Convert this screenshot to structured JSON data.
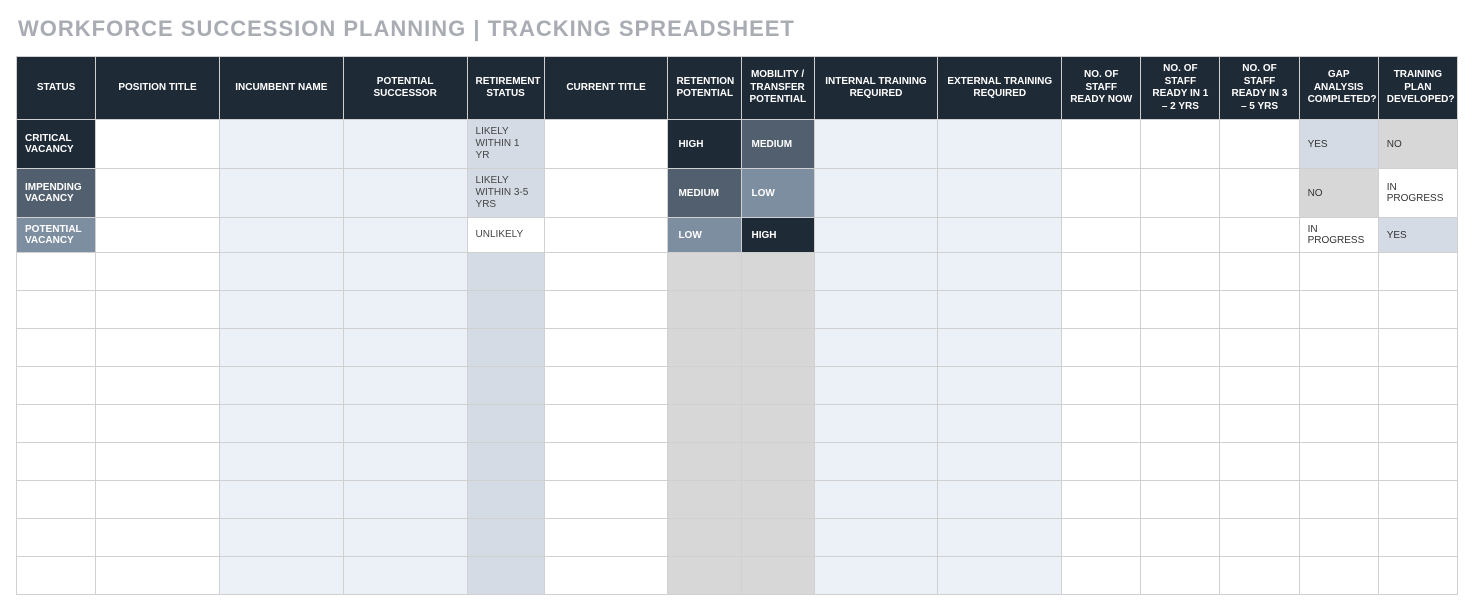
{
  "title": "WORKFORCE SUCCESSION PLANNING | TRACKING SPREADSHEET",
  "colors": {
    "header_bg": "#1f2a37",
    "header_text": "#ffffff",
    "title_text": "#a9adb3",
    "border": "#d0d0d0",
    "alt_lightblue": "#ebf1f7",
    "alt_mutedblue": "#d4dbe4",
    "alt_grey": "#d7d7d7",
    "status_critical": "#1f2a37",
    "status_impending": "#525f6f",
    "status_potential": "#7e8ea1"
  },
  "columns": [
    "STATUS",
    "POSITION TITLE",
    "INCUMBENT NAME",
    "POTENTIAL SUCCESSOR",
    "RETIREMENT STATUS",
    "CURRENT TITLE",
    "RETENTION POTENTIAL",
    "MOBILITY / TRANSFER POTENTIAL",
    "INTERNAL TRAINING REQUIRED",
    "EXTERNAL TRAINING REQUIRED",
    "NO. OF STAFF READY NOW",
    "NO. OF STAFF READY IN 1 – 2 YRS",
    "NO. OF STAFF READY IN 3 – 5 YRS",
    "GAP ANALYSIS COMPLETED?",
    "TRAINING PLAN DEVELOPED?"
  ],
  "rows": [
    {
      "status": {
        "text": "CRITICAL VACANCY",
        "class": "status-critical"
      },
      "position_title": "",
      "incumbent_name": "",
      "potential_successor": "",
      "retirement_status": {
        "text": "LIKELY WITHIN 1 YR",
        "bg": "bg-mutedblue"
      },
      "current_title": "",
      "retention_potential": {
        "text": "HIGH",
        "class": "rp-dark"
      },
      "mobility_potential": {
        "text": "MEDIUM",
        "class": "rp-mid"
      },
      "internal_training": "",
      "external_training": "",
      "staff_now": "",
      "staff_12": "",
      "staff_35": "",
      "gap_analysis": {
        "text": "YES",
        "bg": "bg-mutedblue"
      },
      "training_plan": {
        "text": "NO",
        "bg": "bg-grey"
      }
    },
    {
      "status": {
        "text": "IMPENDING VACANCY",
        "class": "status-impending"
      },
      "position_title": "",
      "incumbent_name": "",
      "potential_successor": "",
      "retirement_status": {
        "text": "LIKELY WITHIN 3-5 YRS",
        "bg": "bg-mutedblue"
      },
      "current_title": "",
      "retention_potential": {
        "text": "MEDIUM",
        "class": "rp-mid"
      },
      "mobility_potential": {
        "text": "LOW",
        "class": "rp-slate"
      },
      "internal_training": "",
      "external_training": "",
      "staff_now": "",
      "staff_12": "",
      "staff_35": "",
      "gap_analysis": {
        "text": "NO",
        "bg": "bg-grey"
      },
      "training_plan": {
        "text": "IN PROGRESS",
        "bg": "bg-white"
      }
    },
    {
      "status": {
        "text": "POTENTIAL VACANCY",
        "class": "status-potential"
      },
      "position_title": "",
      "incumbent_name": "",
      "potential_successor": "",
      "retirement_status": {
        "text": "UNLIKELY",
        "bg": "bg-white"
      },
      "current_title": "",
      "retention_potential": {
        "text": "LOW",
        "class": "rp-slate"
      },
      "mobility_potential": {
        "text": "HIGH",
        "class": "rp-dark"
      },
      "internal_training": "",
      "external_training": "",
      "staff_now": "",
      "staff_12": "",
      "staff_35": "",
      "gap_analysis": {
        "text": "IN PROGRESS",
        "bg": "bg-white"
      },
      "training_plan": {
        "text": "YES",
        "bg": "bg-mutedblue"
      }
    }
  ],
  "empty_row_count": 9,
  "column_bg": {
    "status": "bg-white",
    "position_title": "bg-white",
    "incumbent_name": "bg-lightblue",
    "potential_successor": "bg-lightblue",
    "retirement_status": "bg-mutedblue",
    "current_title": "bg-white",
    "retention_potential": "bg-grey",
    "mobility_potential": "bg-grey",
    "internal_training": "bg-lightblue",
    "external_training": "bg-lightblue",
    "staff_now": "bg-white",
    "staff_12": "bg-white",
    "staff_35": "bg-white",
    "gap_analysis": "bg-white",
    "training_plan": "bg-white"
  }
}
